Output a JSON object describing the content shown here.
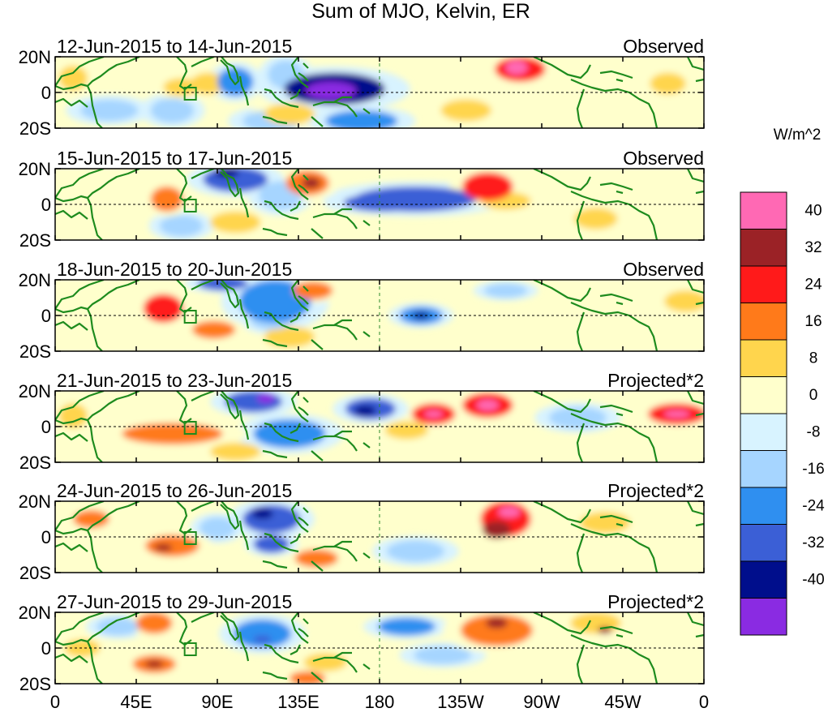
{
  "title": "Sum of MJO, Kelvin, ER",
  "colorbar": {
    "unit": "W/m^2",
    "ticks": [
      "40",
      "32",
      "24",
      "16",
      "8",
      "0",
      "-8",
      "-16",
      "-24",
      "-32",
      "-40"
    ],
    "colors_top_to_bottom": [
      "#ff69b4",
      "#9b2226",
      "#ff1a1a",
      "#ff7a1a",
      "#ffd54d",
      "#ffffcc",
      "#d8f3ff",
      "#a6d5ff",
      "#2f8ff0",
      "#3b5fd6",
      "#000e8c",
      "#8a2be2"
    ]
  },
  "axes": {
    "lat_labels": [
      "20N",
      "0",
      "20S"
    ],
    "lon_labels": [
      "0",
      "45E",
      "90E",
      "135E",
      "180",
      "135W",
      "90W",
      "45W",
      "0"
    ]
  },
  "colors": {
    "land": "#1e8b1e",
    "frame": "#000000"
  },
  "panels": [
    {
      "date_range": "12-Jun-2015 to 14-Jun-2015",
      "status": "Observed",
      "blobs": [
        {
          "lon": 155,
          "lat": 2,
          "rx": 28,
          "ry": 9,
          "v": -36
        },
        {
          "lon": 153,
          "lat": 1,
          "rx": 14,
          "ry": 5,
          "v": -44
        },
        {
          "lon": 100,
          "lat": 6,
          "rx": 10,
          "ry": 8,
          "v": -18
        },
        {
          "lon": 128,
          "lat": 10,
          "rx": 10,
          "ry": 8,
          "v": -14
        },
        {
          "lon": 120,
          "lat": -16,
          "rx": 16,
          "ry": 6,
          "v": -12
        },
        {
          "lon": 170,
          "lat": -16,
          "rx": 20,
          "ry": 6,
          "v": -20
        },
        {
          "lon": 65,
          "lat": -10,
          "rx": 12,
          "ry": 7,
          "v": -14
        },
        {
          "lon": 30,
          "lat": -10,
          "rx": 16,
          "ry": 6,
          "v": -10
        },
        {
          "lon": 258,
          "lat": 13,
          "rx": 14,
          "ry": 7,
          "v": 30
        },
        {
          "lon": 256,
          "lat": 14,
          "rx": 6,
          "ry": 4,
          "v": 44
        },
        {
          "lon": 85,
          "lat": 5,
          "rx": 10,
          "ry": 6,
          "v": 16
        },
        {
          "lon": 70,
          "lat": 3,
          "rx": 10,
          "ry": 5,
          "v": 14
        },
        {
          "lon": 130,
          "lat": -12,
          "rx": 14,
          "ry": 6,
          "v": 12
        },
        {
          "lon": 228,
          "lat": -10,
          "rx": 14,
          "ry": 6,
          "v": 10
        },
        {
          "lon": 340,
          "lat": 5,
          "rx": 10,
          "ry": 6,
          "v": 9
        },
        {
          "lon": 10,
          "lat": 8,
          "rx": 8,
          "ry": 7,
          "v": 10
        }
      ]
    },
    {
      "date_range": "15-Jun-2015 to 17-Jun-2015",
      "status": "Observed",
      "blobs": [
        {
          "lon": 200,
          "lat": 3,
          "rx": 34,
          "ry": 7,
          "v": -24
        },
        {
          "lon": 182,
          "lat": 1,
          "rx": 22,
          "ry": 5,
          "v": -30
        },
        {
          "lon": 100,
          "lat": 14,
          "rx": 18,
          "ry": 7,
          "v": -26
        },
        {
          "lon": 95,
          "lat": 18,
          "rx": 7,
          "ry": 3,
          "v": -36
        },
        {
          "lon": 125,
          "lat": 5,
          "rx": 12,
          "ry": 8,
          "v": -14
        },
        {
          "lon": 140,
          "lat": 12,
          "rx": 12,
          "ry": 7,
          "v": 24
        },
        {
          "lon": 142,
          "lat": 12,
          "rx": 5,
          "ry": 3,
          "v": 36
        },
        {
          "lon": 240,
          "lat": 10,
          "rx": 14,
          "ry": 8,
          "v": 26
        },
        {
          "lon": 62,
          "lat": 3,
          "rx": 9,
          "ry": 7,
          "v": 18
        },
        {
          "lon": 100,
          "lat": -10,
          "rx": 14,
          "ry": 6,
          "v": 10
        },
        {
          "lon": 300,
          "lat": -8,
          "rx": 12,
          "ry": 6,
          "v": 10
        },
        {
          "lon": 70,
          "lat": -12,
          "rx": 12,
          "ry": 6,
          "v": -10
        },
        {
          "lon": 250,
          "lat": 2,
          "rx": 14,
          "ry": 5,
          "v": 9
        }
      ]
    },
    {
      "date_range": "18-Jun-2015 to 20-Jun-2015",
      "status": "Observed",
      "blobs": [
        {
          "lon": 60,
          "lat": 4,
          "rx": 11,
          "ry": 8,
          "v": 26
        },
        {
          "lon": 88,
          "lat": -8,
          "rx": 12,
          "ry": 5,
          "v": 24
        },
        {
          "lon": 143,
          "lat": 14,
          "rx": 11,
          "ry": 5,
          "v": 20
        },
        {
          "lon": 93,
          "lat": 18,
          "rx": 14,
          "ry": 4,
          "v": -30
        },
        {
          "lon": 122,
          "lat": 8,
          "rx": 20,
          "ry": 12,
          "v": -18
        },
        {
          "lon": 120,
          "lat": -2,
          "rx": 12,
          "ry": 6,
          "v": -14
        },
        {
          "lon": 203,
          "lat": 0,
          "rx": 12,
          "ry": 5,
          "v": -22
        },
        {
          "lon": 203,
          "lat": 0,
          "rx": 5,
          "ry": 2,
          "v": -36
        },
        {
          "lon": 250,
          "lat": 14,
          "rx": 12,
          "ry": 4,
          "v": -12
        },
        {
          "lon": 350,
          "lat": 8,
          "rx": 12,
          "ry": 6,
          "v": 12
        },
        {
          "lon": 130,
          "lat": -12,
          "rx": 14,
          "ry": 6,
          "v": 9
        }
      ]
    },
    {
      "date_range": "21-Jun-2015 to 23-Jun-2015",
      "status": "Projected*2",
      "blobs": [
        {
          "lon": 240,
          "lat": 12,
          "rx": 14,
          "ry": 7,
          "v": 30
        },
        {
          "lon": 240,
          "lat": 12,
          "rx": 6,
          "ry": 3,
          "v": 44
        },
        {
          "lon": 210,
          "lat": 7,
          "rx": 12,
          "ry": 6,
          "v": 28
        },
        {
          "lon": 210,
          "lat": 7,
          "rx": 5,
          "ry": 2,
          "v": 42
        },
        {
          "lon": 345,
          "lat": 7,
          "rx": 16,
          "ry": 6,
          "v": 28
        },
        {
          "lon": 345,
          "lat": 7,
          "rx": 7,
          "ry": 2,
          "v": 42
        },
        {
          "lon": 65,
          "lat": -4,
          "rx": 28,
          "ry": 6,
          "v": 18
        },
        {
          "lon": 175,
          "lat": 10,
          "rx": 14,
          "ry": 6,
          "v": -28
        },
        {
          "lon": 172,
          "lat": 9,
          "rx": 6,
          "ry": 3,
          "v": -36
        },
        {
          "lon": 110,
          "lat": 14,
          "rx": 16,
          "ry": 6,
          "v": -28
        },
        {
          "lon": 117,
          "lat": 16,
          "rx": 5,
          "ry": 3,
          "v": -44
        },
        {
          "lon": 130,
          "lat": -4,
          "rx": 20,
          "ry": 8,
          "v": -16
        },
        {
          "lon": 195,
          "lat": -2,
          "rx": 12,
          "ry": 5,
          "v": 16
        },
        {
          "lon": 290,
          "lat": 5,
          "rx": 16,
          "ry": 6,
          "v": -12
        },
        {
          "lon": 10,
          "lat": 6,
          "rx": 8,
          "ry": 7,
          "v": 14
        },
        {
          "lon": 100,
          "lat": -14,
          "rx": 14,
          "ry": 5,
          "v": 10
        }
      ]
    },
    {
      "date_range": "24-Jun-2015 to 26-Jun-2015",
      "status": "Projected*2",
      "blobs": [
        {
          "lon": 250,
          "lat": 10,
          "rx": 14,
          "ry": 10,
          "v": 26
        },
        {
          "lon": 252,
          "lat": 14,
          "rx": 6,
          "ry": 3,
          "v": 44
        },
        {
          "lon": 245,
          "lat": 4,
          "rx": 8,
          "ry": 5,
          "v": 34
        },
        {
          "lon": 65,
          "lat": -5,
          "rx": 15,
          "ry": 6,
          "v": 24
        },
        {
          "lon": 60,
          "lat": -6,
          "rx": 5,
          "ry": 2,
          "v": 36
        },
        {
          "lon": 120,
          "lat": 10,
          "rx": 16,
          "ry": 8,
          "v": -26
        },
        {
          "lon": 115,
          "lat": 13,
          "rx": 6,
          "ry": 3,
          "v": -34
        },
        {
          "lon": 120,
          "lat": -4,
          "rx": 10,
          "ry": 5,
          "v": -28
        },
        {
          "lon": 145,
          "lat": -12,
          "rx": 12,
          "ry": 5,
          "v": 22
        },
        {
          "lon": 20,
          "lat": 10,
          "rx": 10,
          "ry": 5,
          "v": 20
        },
        {
          "lon": 90,
          "lat": 5,
          "rx": 10,
          "ry": 6,
          "v": -12
        },
        {
          "lon": 305,
          "lat": 8,
          "rx": 14,
          "ry": 6,
          "v": 10
        },
        {
          "lon": 200,
          "lat": -8,
          "rx": 16,
          "ry": 6,
          "v": -8
        }
      ]
    },
    {
      "date_range": "27-Jun-2015 to 29-Jun-2015",
      "status": "Projected*2",
      "blobs": [
        {
          "lon": 245,
          "lat": 10,
          "rx": 20,
          "ry": 9,
          "v": 22
        },
        {
          "lon": 245,
          "lat": 14,
          "rx": 6,
          "ry": 3,
          "v": 34
        },
        {
          "lon": 300,
          "lat": 14,
          "rx": 14,
          "ry": 6,
          "v": 16
        },
        {
          "lon": 305,
          "lat": 10,
          "rx": 4,
          "ry": 2,
          "v": 34
        },
        {
          "lon": 55,
          "lat": -9,
          "rx": 12,
          "ry": 5,
          "v": 24
        },
        {
          "lon": 55,
          "lat": -9,
          "rx": 5,
          "ry": 2,
          "v": 36
        },
        {
          "lon": 55,
          "lat": 14,
          "rx": 10,
          "ry": 6,
          "v": 18
        },
        {
          "lon": 115,
          "lat": 8,
          "rx": 16,
          "ry": 8,
          "v": -20
        },
        {
          "lon": 115,
          "lat": 5,
          "rx": 5,
          "ry": 2,
          "v": -30
        },
        {
          "lon": 195,
          "lat": 12,
          "rx": 16,
          "ry": 5,
          "v": -20
        },
        {
          "lon": 150,
          "lat": -8,
          "rx": 12,
          "ry": 5,
          "v": 14
        },
        {
          "lon": 140,
          "lat": -17,
          "rx": 10,
          "ry": 4,
          "v": 24
        },
        {
          "lon": 35,
          "lat": 12,
          "rx": 12,
          "ry": 5,
          "v": -12
        },
        {
          "lon": 15,
          "lat": 0,
          "rx": 10,
          "ry": 5,
          "v": 10
        },
        {
          "lon": 215,
          "lat": -4,
          "rx": 16,
          "ry": 5,
          "v": -10
        }
      ]
    }
  ]
}
